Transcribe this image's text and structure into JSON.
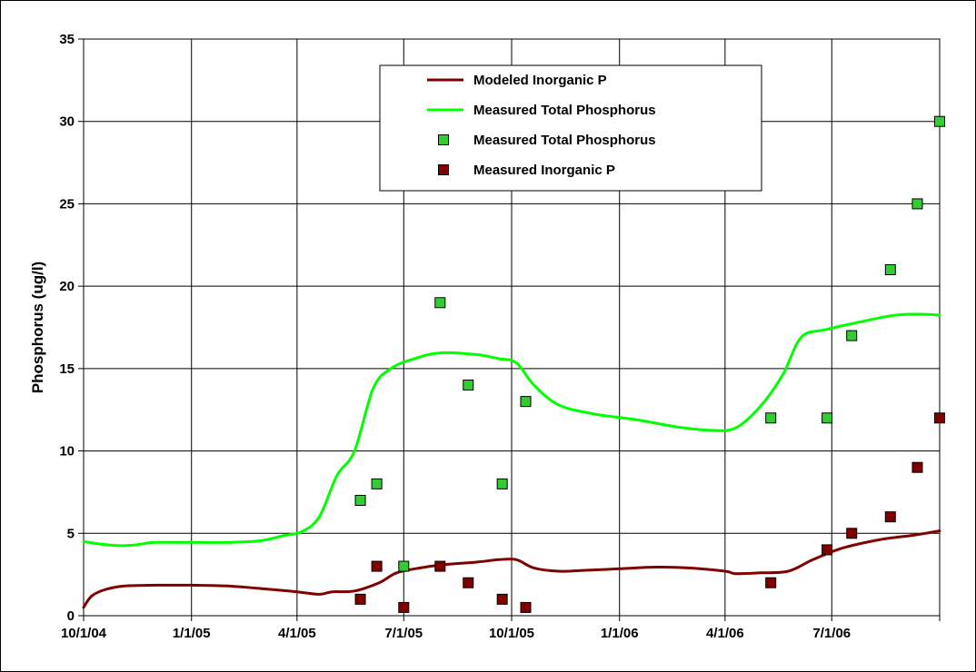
{
  "chart_data": {
    "type": "line",
    "ylabel": "Phosphorus (ug/l)",
    "xlabel": "",
    "ylim": [
      0,
      35
    ],
    "yticks": [
      0,
      5,
      10,
      15,
      20,
      25,
      30,
      35
    ],
    "xlim": [
      "2004-10-01",
      "2006-10-01"
    ],
    "xticks": [
      {
        "date": "2004-10-01",
        "label": "10/1/04"
      },
      {
        "date": "2005-01-01",
        "label": "1/1/05"
      },
      {
        "date": "2005-04-01",
        "label": "4/1/05"
      },
      {
        "date": "2005-07-01",
        "label": "7/1/05"
      },
      {
        "date": "2005-10-01",
        "label": "10/1/05"
      },
      {
        "date": "2006-01-01",
        "label": "1/1/06"
      },
      {
        "date": "2006-04-01",
        "label": "4/1/06"
      },
      {
        "date": "2006-07-01",
        "label": "7/1/06"
      },
      {
        "date": "2006-10-01",
        "label": ""
      }
    ],
    "grid": true,
    "legend_position": "top-center",
    "series": [
      {
        "name": "Modeled Inorganic P",
        "kind": "line",
        "color": "#7f0000",
        "points": [
          [
            "2004-10-01",
            0.5
          ],
          [
            "2004-10-08",
            1.2
          ],
          [
            "2004-10-20",
            1.6
          ],
          [
            "2004-11-05",
            1.8
          ],
          [
            "2004-12-01",
            1.85
          ],
          [
            "2005-01-01",
            1.85
          ],
          [
            "2005-02-01",
            1.8
          ],
          [
            "2005-03-01",
            1.65
          ],
          [
            "2005-04-01",
            1.45
          ],
          [
            "2005-04-20",
            1.3
          ],
          [
            "2005-05-01",
            1.45
          ],
          [
            "2005-05-20",
            1.5
          ],
          [
            "2005-06-10",
            2.0
          ],
          [
            "2005-06-25",
            2.6
          ],
          [
            "2005-07-15",
            2.9
          ],
          [
            "2005-08-05",
            3.1
          ],
          [
            "2005-09-01",
            3.25
          ],
          [
            "2005-09-20",
            3.4
          ],
          [
            "2005-10-05",
            3.4
          ],
          [
            "2005-10-20",
            2.9
          ],
          [
            "2005-11-10",
            2.7
          ],
          [
            "2005-12-01",
            2.75
          ],
          [
            "2006-01-01",
            2.85
          ],
          [
            "2006-02-01",
            2.95
          ],
          [
            "2006-03-01",
            2.9
          ],
          [
            "2006-04-01",
            2.7
          ],
          [
            "2006-04-10",
            2.55
          ],
          [
            "2006-05-01",
            2.6
          ],
          [
            "2006-05-25",
            2.7
          ],
          [
            "2006-06-15",
            3.4
          ],
          [
            "2006-07-10",
            4.1
          ],
          [
            "2006-08-10",
            4.6
          ],
          [
            "2006-09-10",
            4.9
          ],
          [
            "2006-10-01",
            5.15
          ]
        ]
      },
      {
        "name": "Measured Total Phosphorus",
        "kind": "line",
        "color": "#00ff00",
        "points": [
          [
            "2004-10-01",
            4.5
          ],
          [
            "2004-10-15",
            4.35
          ],
          [
            "2004-11-01",
            4.25
          ],
          [
            "2004-11-15",
            4.3
          ],
          [
            "2004-12-01",
            4.45
          ],
          [
            "2005-01-01",
            4.45
          ],
          [
            "2005-02-01",
            4.45
          ],
          [
            "2005-03-01",
            4.55
          ],
          [
            "2005-03-20",
            4.85
          ],
          [
            "2005-04-05",
            5.1
          ],
          [
            "2005-04-20",
            6.0
          ],
          [
            "2005-05-05",
            8.5
          ],
          [
            "2005-05-20",
            10.0
          ],
          [
            "2005-06-05",
            13.8
          ],
          [
            "2005-06-20",
            15.0
          ],
          [
            "2005-07-10",
            15.6
          ],
          [
            "2005-08-01",
            15.95
          ],
          [
            "2005-09-01",
            15.85
          ],
          [
            "2005-09-20",
            15.6
          ],
          [
            "2005-10-05",
            15.35
          ],
          [
            "2005-10-20",
            14.0
          ],
          [
            "2005-11-10",
            12.8
          ],
          [
            "2005-12-10",
            12.25
          ],
          [
            "2006-01-15",
            11.9
          ],
          [
            "2006-02-20",
            11.45
          ],
          [
            "2006-03-20",
            11.25
          ],
          [
            "2006-04-10",
            11.4
          ],
          [
            "2006-05-01",
            12.7
          ],
          [
            "2006-05-20",
            14.6
          ],
          [
            "2006-06-05",
            16.9
          ],
          [
            "2006-06-25",
            17.35
          ],
          [
            "2006-07-20",
            17.75
          ],
          [
            "2006-08-20",
            18.2
          ],
          [
            "2006-09-10",
            18.3
          ],
          [
            "2006-10-01",
            18.25
          ]
        ]
      },
      {
        "name": "Measured Total Phosphorus",
        "kind": "marker",
        "color": "#33cc33",
        "points": [
          [
            "2005-05-25",
            7
          ],
          [
            "2005-06-08",
            8
          ],
          [
            "2005-07-01",
            3
          ],
          [
            "2005-08-01",
            19
          ],
          [
            "2005-08-25",
            14
          ],
          [
            "2005-09-23",
            8
          ],
          [
            "2005-10-13",
            13
          ],
          [
            "2006-05-10",
            12
          ],
          [
            "2006-06-27",
            12
          ],
          [
            "2006-07-18",
            17
          ],
          [
            "2006-08-20",
            21
          ],
          [
            "2006-09-12",
            25
          ],
          [
            "2006-10-01",
            30
          ]
        ]
      },
      {
        "name": "Measured Inorganic P",
        "kind": "marker",
        "color": "#800000",
        "points": [
          [
            "2005-05-25",
            1
          ],
          [
            "2005-06-08",
            3
          ],
          [
            "2005-07-01",
            0.5
          ],
          [
            "2005-08-01",
            3
          ],
          [
            "2005-08-25",
            2
          ],
          [
            "2005-09-23",
            1
          ],
          [
            "2005-10-13",
            0.5
          ],
          [
            "2006-05-10",
            2
          ],
          [
            "2006-06-27",
            4
          ],
          [
            "2006-07-18",
            5
          ],
          [
            "2006-08-20",
            6
          ],
          [
            "2006-09-12",
            9
          ],
          [
            "2006-10-01",
            12
          ]
        ]
      }
    ]
  }
}
